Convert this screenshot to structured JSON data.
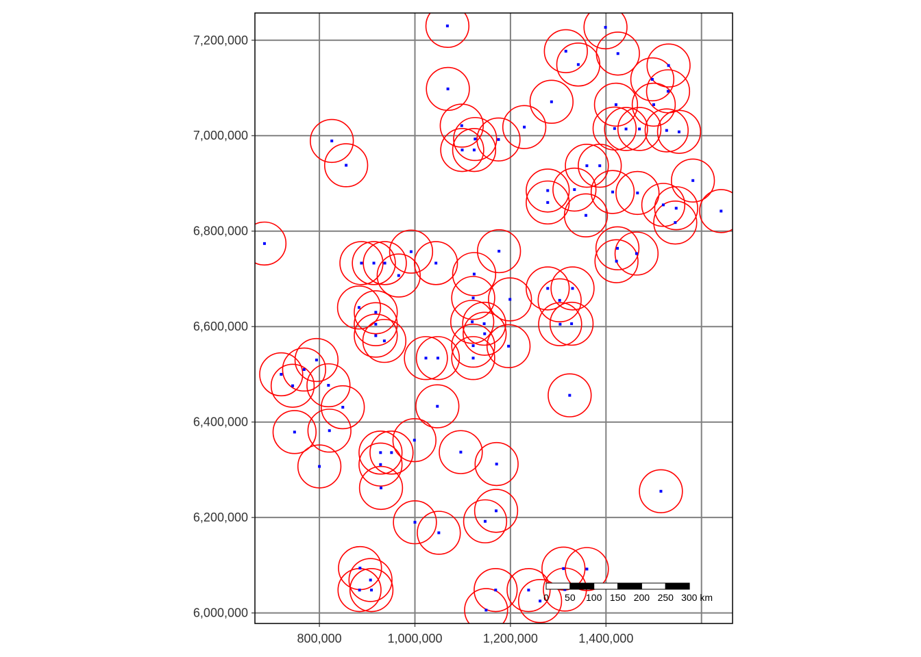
{
  "map": {
    "x_ticks": [
      {
        "value": 800000,
        "label": "800,000"
      },
      {
        "value": 1000000,
        "label": "1,000,000"
      },
      {
        "value": 1200000,
        "label": "1,200,000"
      },
      {
        "value": 1400000,
        "label": "1,400,000"
      }
    ],
    "x_grid_extra": [
      1600000
    ],
    "y_ticks": [
      {
        "value": 6000000,
        "label": "6,000,000"
      },
      {
        "value": 6200000,
        "label": "6,200,000"
      },
      {
        "value": 6400000,
        "label": "6,400,000"
      },
      {
        "value": 6600000,
        "label": "6,600,000"
      },
      {
        "value": 6800000,
        "label": "6,800,000"
      },
      {
        "value": 7000000,
        "label": "7,000,000"
      },
      {
        "value": 7200000,
        "label": "7,200,000"
      }
    ],
    "xlim": [
      665000,
      1665000
    ],
    "ylim": [
      5978000,
      7257000
    ],
    "buffer_radius_m": 45000,
    "colors": {
      "buffer": "#ff0000",
      "point": "#0000ff",
      "grid": "#808080",
      "frame": "#000000"
    },
    "scale_bar": {
      "labels": [
        "0",
        "50",
        "100",
        "150",
        "200",
        "250",
        "300 km"
      ],
      "segment_km": 50,
      "unit": "km"
    },
    "points": [
      [
        685000,
        6774000
      ],
      [
        883000,
        6640000
      ],
      [
        936000,
        6570000
      ],
      [
        768000,
        6510000
      ],
      [
        744000,
        6476000
      ],
      [
        720000,
        6500000
      ],
      [
        794000,
        6530000
      ],
      [
        819000,
        6477000
      ],
      [
        849000,
        6431000
      ],
      [
        821000,
        6382000
      ],
      [
        748000,
        6379000
      ],
      [
        800000,
        6307000
      ],
      [
        928000,
        6336000
      ],
      [
        951000,
        6336000
      ],
      [
        999000,
        6362000
      ],
      [
        928000,
        6311000
      ],
      [
        929000,
        6262000
      ],
      [
        1000000,
        6190000
      ],
      [
        1050000,
        6168000
      ],
      [
        1096000,
        6337000
      ],
      [
        1171000,
        6312000
      ],
      [
        1170000,
        6214000
      ],
      [
        1147000,
        6192000
      ],
      [
        885000,
        6094000
      ],
      [
        907000,
        6069000
      ],
      [
        884000,
        6048000
      ],
      [
        909000,
        6048000
      ],
      [
        1149000,
        6006000
      ],
      [
        1169000,
        6048000
      ],
      [
        1238000,
        6048000
      ],
      [
        1262000,
        6025000
      ],
      [
        1311000,
        6093000
      ],
      [
        1360000,
        6092000
      ],
      [
        1314000,
        6049000
      ],
      [
        1515000,
        6255000
      ],
      [
        1324000,
        6456000
      ],
      [
        1047000,
        6433000
      ],
      [
        1023000,
        6534000
      ],
      [
        1048000,
        6534000
      ],
      [
        1122000,
        6534000
      ],
      [
        1122000,
        6560000
      ],
      [
        1196000,
        6559000
      ],
      [
        1146000,
        6585000
      ],
      [
        1145000,
        6606000
      ],
      [
        1120000,
        6610000
      ],
      [
        1122000,
        6660000
      ],
      [
        1199000,
        6657000
      ],
      [
        1124000,
        6710000
      ],
      [
        1176000,
        6758000
      ],
      [
        918000,
        6630000
      ],
      [
        918000,
        6605000
      ],
      [
        918000,
        6581000
      ],
      [
        888000,
        6733000
      ],
      [
        914000,
        6733000
      ],
      [
        937000,
        6733000
      ],
      [
        966000,
        6707000
      ],
      [
        992000,
        6757000
      ],
      [
        1044000,
        6733000
      ],
      [
        1278000,
        6680000
      ],
      [
        1303000,
        6655000
      ],
      [
        1330000,
        6680000
      ],
      [
        1304000,
        6605000
      ],
      [
        1328000,
        6606000
      ],
      [
        826000,
        6989000
      ],
      [
        856000,
        6938000
      ],
      [
        1069000,
        7098000
      ],
      [
        1068000,
        7230000
      ],
      [
        1098000,
        7021000
      ],
      [
        1099000,
        6970000
      ],
      [
        1124000,
        6970000
      ],
      [
        1126000,
        6993000
      ],
      [
        1175000,
        6992000
      ],
      [
        1229000,
        7018000
      ],
      [
        1286000,
        7071000
      ],
      [
        1316000,
        7177000
      ],
      [
        1342000,
        7149000
      ],
      [
        1399000,
        7227000
      ],
      [
        1425000,
        7172000
      ],
      [
        1421000,
        7065000
      ],
      [
        1418000,
        7015000
      ],
      [
        1442000,
        7014000
      ],
      [
        1470000,
        7014000
      ],
      [
        1497000,
        7118000
      ],
      [
        1531000,
        7147000
      ],
      [
        1530000,
        7093000
      ],
      [
        1500000,
        7065000
      ],
      [
        1527000,
        7011000
      ],
      [
        1553000,
        7008000
      ],
      [
        1360000,
        6937000
      ],
      [
        1387000,
        6937000
      ],
      [
        1278000,
        6885000
      ],
      [
        1278000,
        6860000
      ],
      [
        1334000,
        6887000
      ],
      [
        1358000,
        6833000
      ],
      [
        1414000,
        6882000
      ],
      [
        1466000,
        6880000
      ],
      [
        1520000,
        6855000
      ],
      [
        1547000,
        6848000
      ],
      [
        1545000,
        6818000
      ],
      [
        1582000,
        6906000
      ],
      [
        1641000,
        6842000
      ],
      [
        1424000,
        6764000
      ],
      [
        1422000,
        6737000
      ],
      [
        1464000,
        6753000
      ]
    ]
  }
}
